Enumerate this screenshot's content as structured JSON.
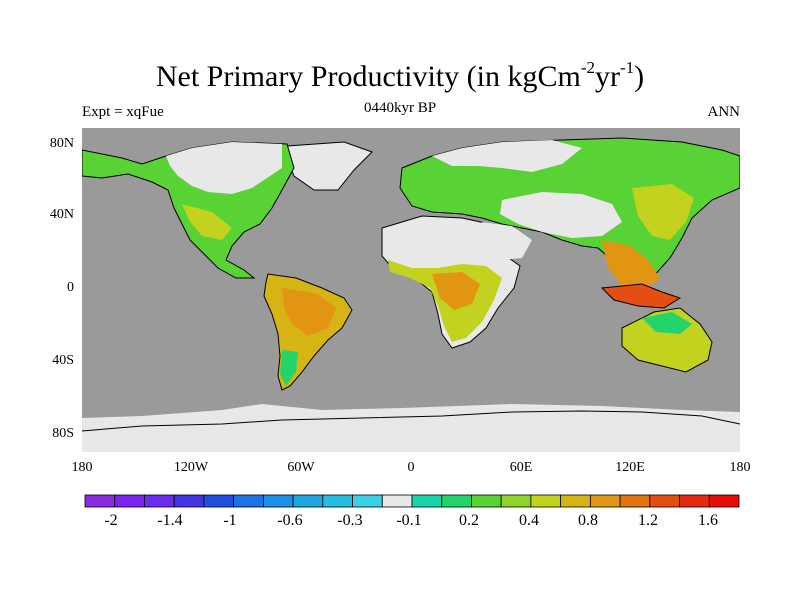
{
  "title": {
    "main": "Net Primary Productivity (in kgCm",
    "exp1": "-2",
    "mid": "yr",
    "exp2": "-1",
    "end": ")"
  },
  "subtitle": "0440kyr BP",
  "left_label": "Expt = xqFue",
  "right_label": "ANN",
  "axes": {
    "lat_ticks": [
      "80N",
      "40N",
      "0",
      "40S",
      "80S"
    ],
    "lon_ticks": [
      "180",
      "120W",
      "60W",
      "0",
      "60E",
      "120E",
      "180"
    ]
  },
  "colorbar": {
    "colors": [
      "#8a2be2",
      "#7b24ee",
      "#6a2cf0",
      "#4434e6",
      "#1f4fe0",
      "#1e72e6",
      "#1d8fe6",
      "#1fa7df",
      "#27bde0",
      "#39d0e8",
      "#e8e8e8",
      "#19d4a6",
      "#22d46a",
      "#58d234",
      "#8fd42a",
      "#c2d21f",
      "#d6b414",
      "#e29512",
      "#e27410",
      "#e44e10",
      "#e62a12",
      "#e60c0c"
    ],
    "labels": [
      "-2",
      "-1.4",
      "-1",
      "-0.6",
      "-0.3",
      "-0.1",
      "0.2",
      "0.4",
      "0.8",
      "1.2",
      "1.6"
    ]
  },
  "legend_colors": {
    "ocean": "#9a9a9a",
    "ice": "#e8e8e8",
    "coastline": "#000000"
  }
}
